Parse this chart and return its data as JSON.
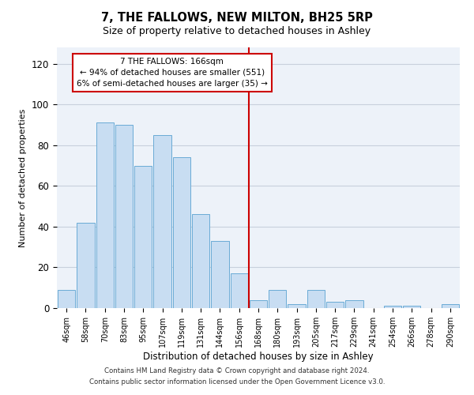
{
  "title": "7, THE FALLOWS, NEW MILTON, BH25 5RP",
  "subtitle": "Size of property relative to detached houses in Ashley",
  "xlabel": "Distribution of detached houses by size in Ashley",
  "ylabel": "Number of detached properties",
  "bin_labels": [
    "46sqm",
    "58sqm",
    "70sqm",
    "83sqm",
    "95sqm",
    "107sqm",
    "119sqm",
    "131sqm",
    "144sqm",
    "156sqm",
    "168sqm",
    "180sqm",
    "193sqm",
    "205sqm",
    "217sqm",
    "229sqm",
    "241sqm",
    "254sqm",
    "266sqm",
    "278sqm",
    "290sqm"
  ],
  "bar_heights": [
    9,
    42,
    91,
    90,
    70,
    85,
    74,
    46,
    33,
    17,
    4,
    9,
    2,
    9,
    3,
    4,
    0,
    1,
    1,
    0,
    2
  ],
  "bar_color": "#c8ddf2",
  "bar_edge_color": "#6aabd6",
  "grid_color": "#c8d0dc",
  "background_color": "#edf2f9",
  "red_line_color": "#cc0000",
  "annotation_border_color": "#cc0000",
  "ylim": [
    0,
    128
  ],
  "yticks": [
    0,
    20,
    40,
    60,
    80,
    100,
    120
  ],
  "marker_label": "7 THE FALLOWS: 166sqm",
  "annotation_line1": "← 94% of detached houses are smaller (551)",
  "annotation_line2": "6% of semi-detached houses are larger (35) →",
  "footer1": "Contains HM Land Registry data © Crown copyright and database right 2024.",
  "footer2": "Contains public sector information licensed under the Open Government Licence v3.0."
}
